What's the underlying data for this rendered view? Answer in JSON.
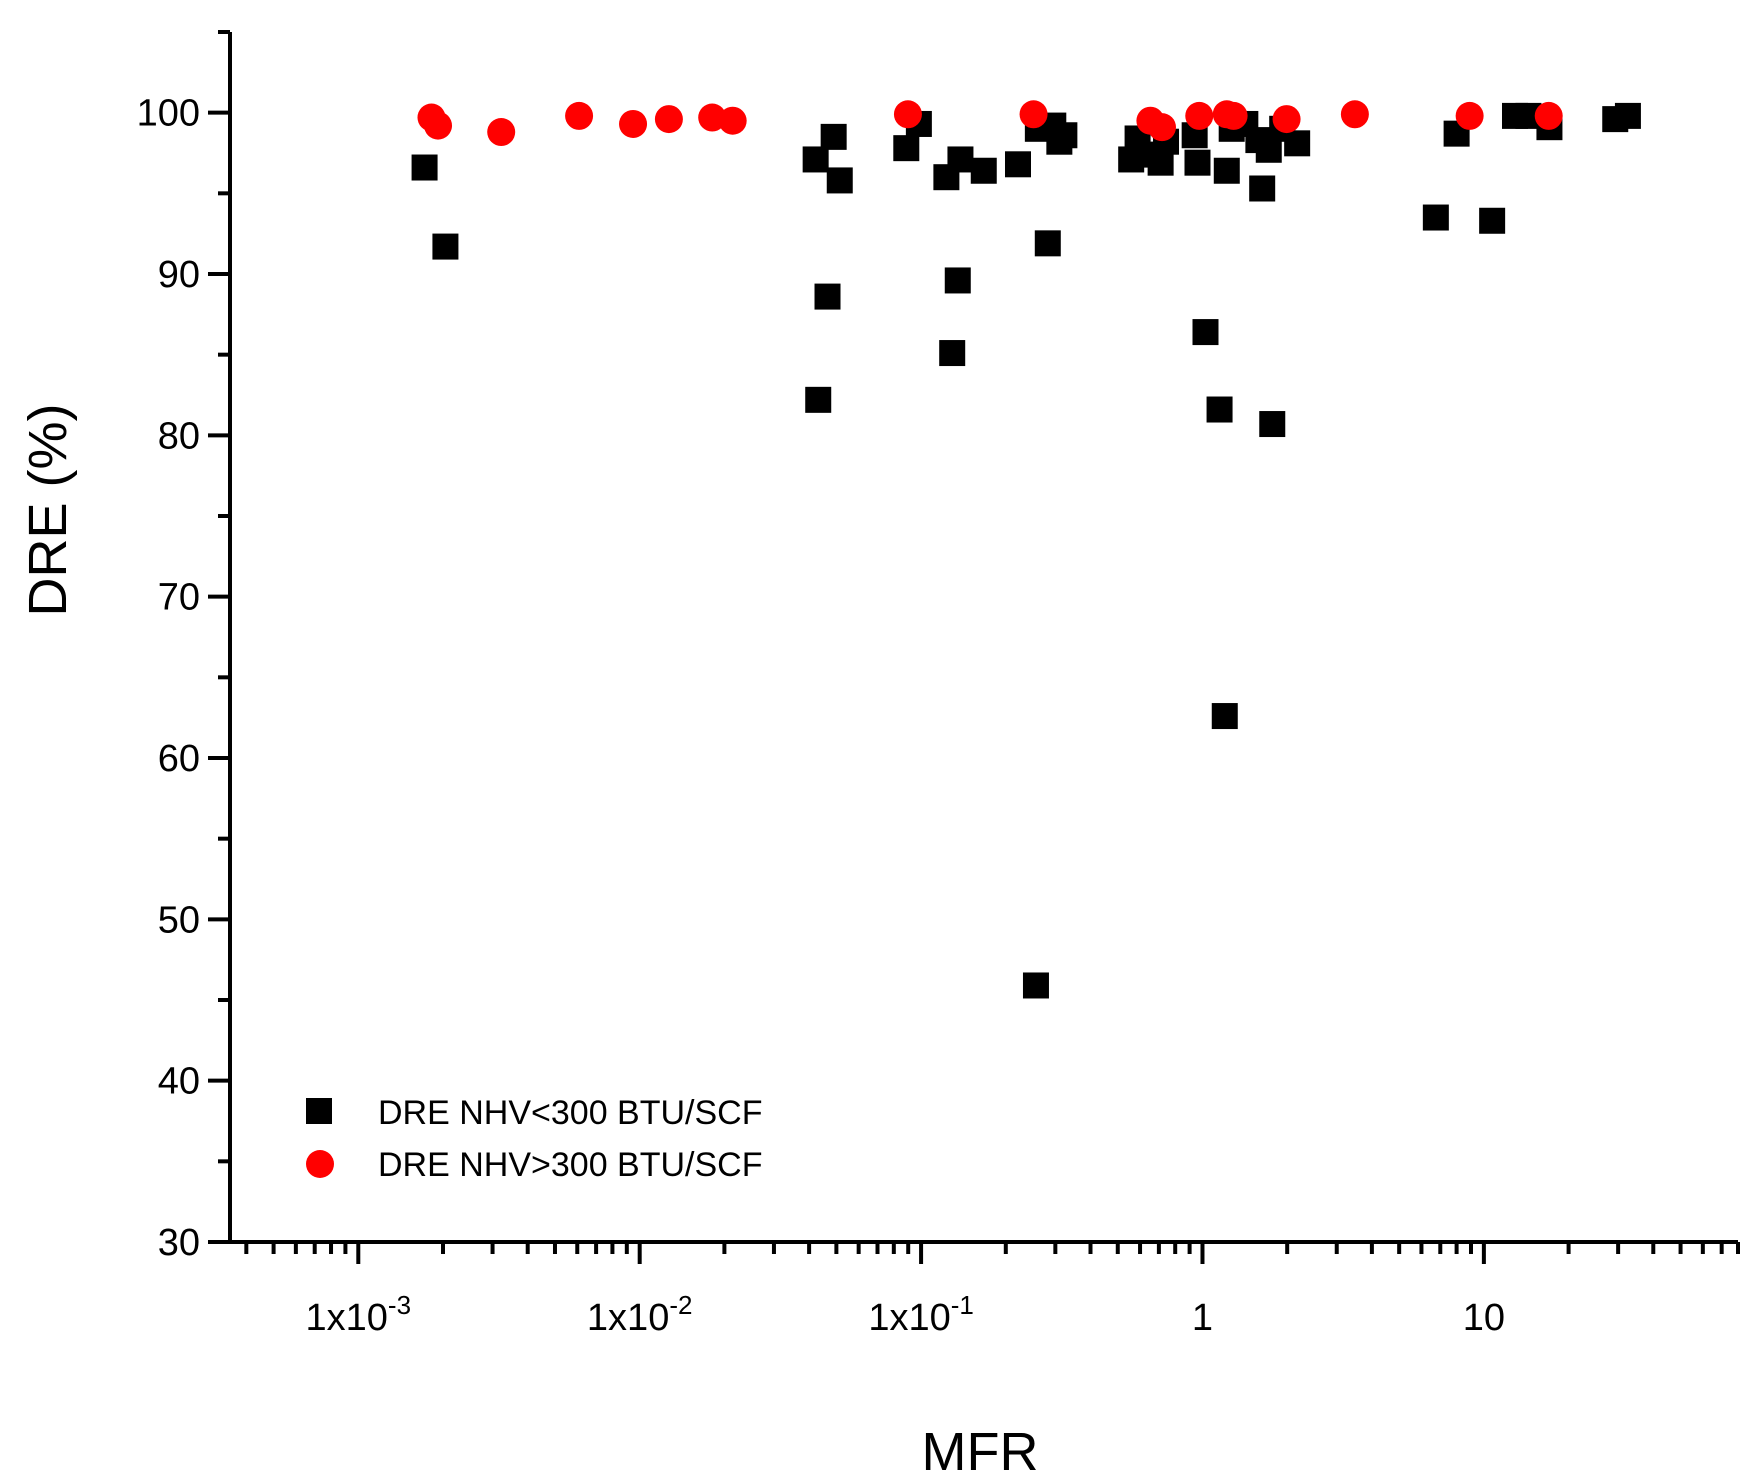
{
  "chart_data": {
    "type": "scatter",
    "title": "",
    "xlabel": "MFR",
    "ylabel": "DRE (%)",
    "x_scale": "log",
    "xlim": [
      0.00035,
      80
    ],
    "ylim": [
      30,
      105
    ],
    "grid": false,
    "legend_position": "bottom-left",
    "x_ticks": [
      {
        "value": 0.001,
        "base": "1x10",
        "exp": "-3"
      },
      {
        "value": 0.01,
        "base": "1x10",
        "exp": "-2"
      },
      {
        "value": 0.1,
        "base": "1x10",
        "exp": "-1"
      },
      {
        "value": 1,
        "base": "1",
        "exp": ""
      },
      {
        "value": 10,
        "base": "10",
        "exp": ""
      }
    ],
    "y_ticks": [
      30,
      40,
      50,
      60,
      70,
      80,
      90,
      100
    ],
    "series": [
      {
        "name": "DRE NHV<300 BTU/SCF",
        "marker": "square",
        "color": "#000000",
        "points": [
          [
            0.00172,
            96.6
          ],
          [
            0.00204,
            91.7
          ],
          [
            0.0422,
            97.1
          ],
          [
            0.0431,
            82.2
          ],
          [
            0.0465,
            88.6
          ],
          [
            0.0489,
            98.5
          ],
          [
            0.0514,
            95.8
          ],
          [
            0.0886,
            97.8
          ],
          [
            0.0982,
            99.3
          ],
          [
            0.123,
            96.0
          ],
          [
            0.129,
            85.1
          ],
          [
            0.135,
            89.6
          ],
          [
            0.138,
            97.1
          ],
          [
            0.167,
            96.4
          ],
          [
            0.221,
            96.8
          ],
          [
            0.256,
            45.9
          ],
          [
            0.26,
            99.0
          ],
          [
            0.282,
            91.9
          ],
          [
            0.295,
            99.2
          ],
          [
            0.31,
            98.2
          ],
          [
            0.323,
            98.6
          ],
          [
            0.558,
            97.1
          ],
          [
            0.588,
            98.4
          ],
          [
            0.612,
            97.4
          ],
          [
            0.71,
            96.9
          ],
          [
            0.742,
            98.2
          ],
          [
            0.938,
            98.6
          ],
          [
            0.96,
            96.9
          ],
          [
            1.025,
            86.4
          ],
          [
            1.15,
            81.6
          ],
          [
            1.2,
            62.6
          ],
          [
            1.22,
            96.4
          ],
          [
            1.27,
            99.0
          ],
          [
            1.42,
            99.3
          ],
          [
            1.58,
            98.3
          ],
          [
            1.63,
            95.3
          ],
          [
            1.72,
            97.7
          ],
          [
            1.77,
            80.7
          ],
          [
            1.92,
            99.0
          ],
          [
            2.17,
            98.1
          ],
          [
            6.75,
            93.5
          ],
          [
            8.0,
            98.7
          ],
          [
            10.7,
            93.3
          ],
          [
            12.9,
            99.8
          ],
          [
            14.4,
            99.8
          ],
          [
            17.1,
            99.1
          ],
          [
            29.3,
            99.6
          ],
          [
            32.5,
            99.8
          ]
        ]
      },
      {
        "name": "DRE NHV>300 BTU/SCF",
        "marker": "circle",
        "color": "#ff0000",
        "points": [
          [
            0.00182,
            99.7
          ],
          [
            0.00192,
            99.2
          ],
          [
            0.00322,
            98.8
          ],
          [
            0.00609,
            99.8
          ],
          [
            0.00947,
            99.3
          ],
          [
            0.0127,
            99.6
          ],
          [
            0.0181,
            99.7
          ],
          [
            0.0214,
            99.5
          ],
          [
            0.0898,
            99.9
          ],
          [
            0.251,
            99.9
          ],
          [
            0.653,
            99.5
          ],
          [
            0.718,
            99.1
          ],
          [
            0.974,
            99.8
          ],
          [
            1.22,
            99.9
          ],
          [
            1.29,
            99.8
          ],
          [
            1.99,
            99.6
          ],
          [
            3.48,
            99.9
          ],
          [
            8.9,
            99.8
          ],
          [
            17.0,
            99.8
          ]
        ]
      }
    ]
  }
}
